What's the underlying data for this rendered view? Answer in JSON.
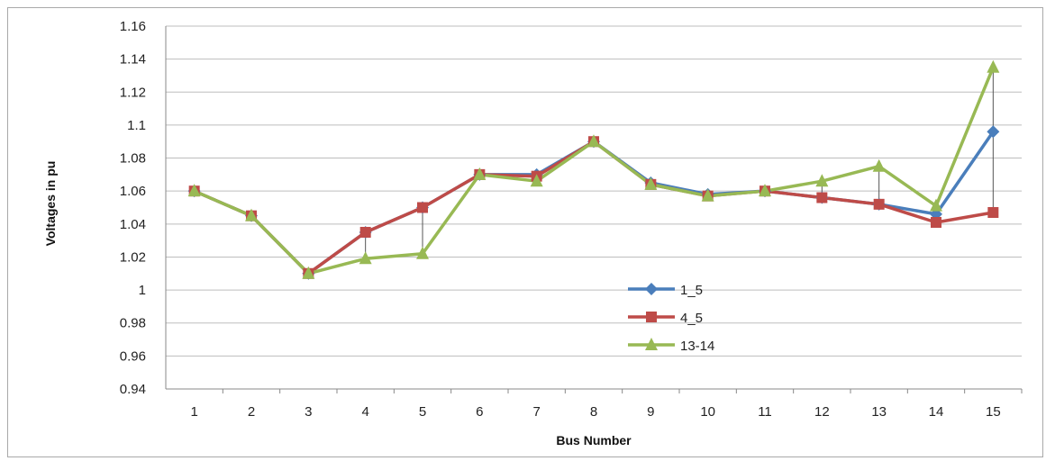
{
  "chart_data": {
    "type": "line",
    "title": "",
    "xlabel": "Bus Number",
    "ylabel": "Voltages in pu",
    "categories": [
      "1",
      "2",
      "3",
      "4",
      "5",
      "6",
      "7",
      "8",
      "9",
      "10",
      "11",
      "12",
      "13",
      "14",
      "15"
    ],
    "ylim": [
      0.94,
      1.16
    ],
    "y_ticks": [
      "0.94",
      "0.96",
      "0.98",
      "1",
      "1.02",
      "1.04",
      "1.06",
      "1.08",
      "1.1",
      "1.12",
      "1.14",
      "1.16"
    ],
    "grid": "horizontal",
    "legend_position": "center-right",
    "series": [
      {
        "name": "1_5",
        "color": "#4a7ebb",
        "marker": "diamond",
        "values": [
          1.06,
          1.045,
          1.01,
          1.035,
          1.05,
          1.07,
          1.07,
          1.09,
          1.065,
          1.058,
          1.06,
          1.056,
          1.052,
          1.046,
          1.096
        ]
      },
      {
        "name": "4_5",
        "color": "#be4b48",
        "marker": "square",
        "values": [
          1.06,
          1.045,
          1.01,
          1.035,
          1.05,
          1.07,
          1.069,
          1.09,
          1.064,
          1.057,
          1.06,
          1.056,
          1.052,
          1.041,
          1.047
        ]
      },
      {
        "name": "13-14",
        "color": "#98b954",
        "marker": "triangle",
        "values": [
          1.06,
          1.045,
          1.01,
          1.019,
          1.022,
          1.07,
          1.066,
          1.09,
          1.064,
          1.057,
          1.06,
          1.066,
          1.075,
          1.051,
          1.135
        ]
      }
    ],
    "drop_lines": "present"
  }
}
